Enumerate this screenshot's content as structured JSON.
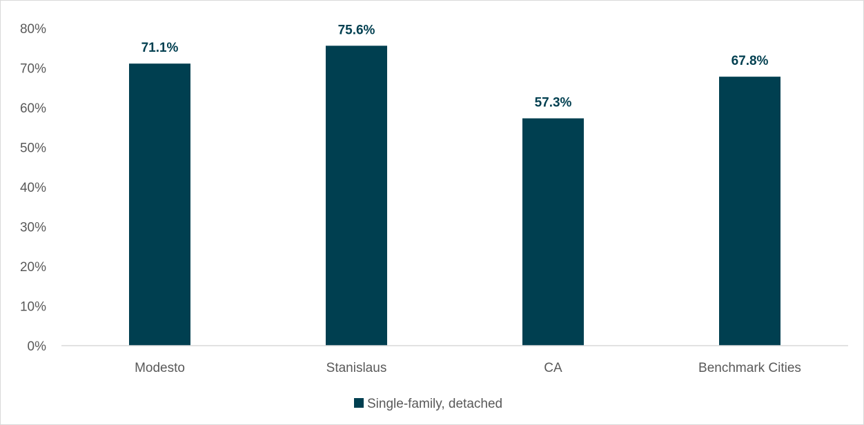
{
  "chart_data": {
    "type": "bar",
    "title": "",
    "xlabel": "",
    "ylabel": "",
    "categories": [
      "Modesto",
      "Stanislaus",
      "CA",
      "Benchmark Cities"
    ],
    "series": [
      {
        "name": "Single-family, detached",
        "values": [
          71.1,
          75.6,
          57.3,
          67.8
        ],
        "data_labels": [
          "71.1%",
          "75.6%",
          "57.3%",
          "67.8%"
        ],
        "color": "#003f50"
      }
    ],
    "ylim": [
      0,
      80
    ],
    "yticks": [
      0,
      10,
      20,
      30,
      40,
      50,
      60,
      70,
      80
    ],
    "ytick_labels": [
      "0%",
      "10%",
      "20%",
      "30%",
      "40%",
      "50%",
      "60%",
      "70%",
      "80%"
    ],
    "grid": false,
    "legend": "bottom-center",
    "colors": {
      "bar": "#003f50",
      "data_label": "#003f50",
      "axis_line": "#d9d9d9",
      "tick_text": "#595959"
    }
  }
}
